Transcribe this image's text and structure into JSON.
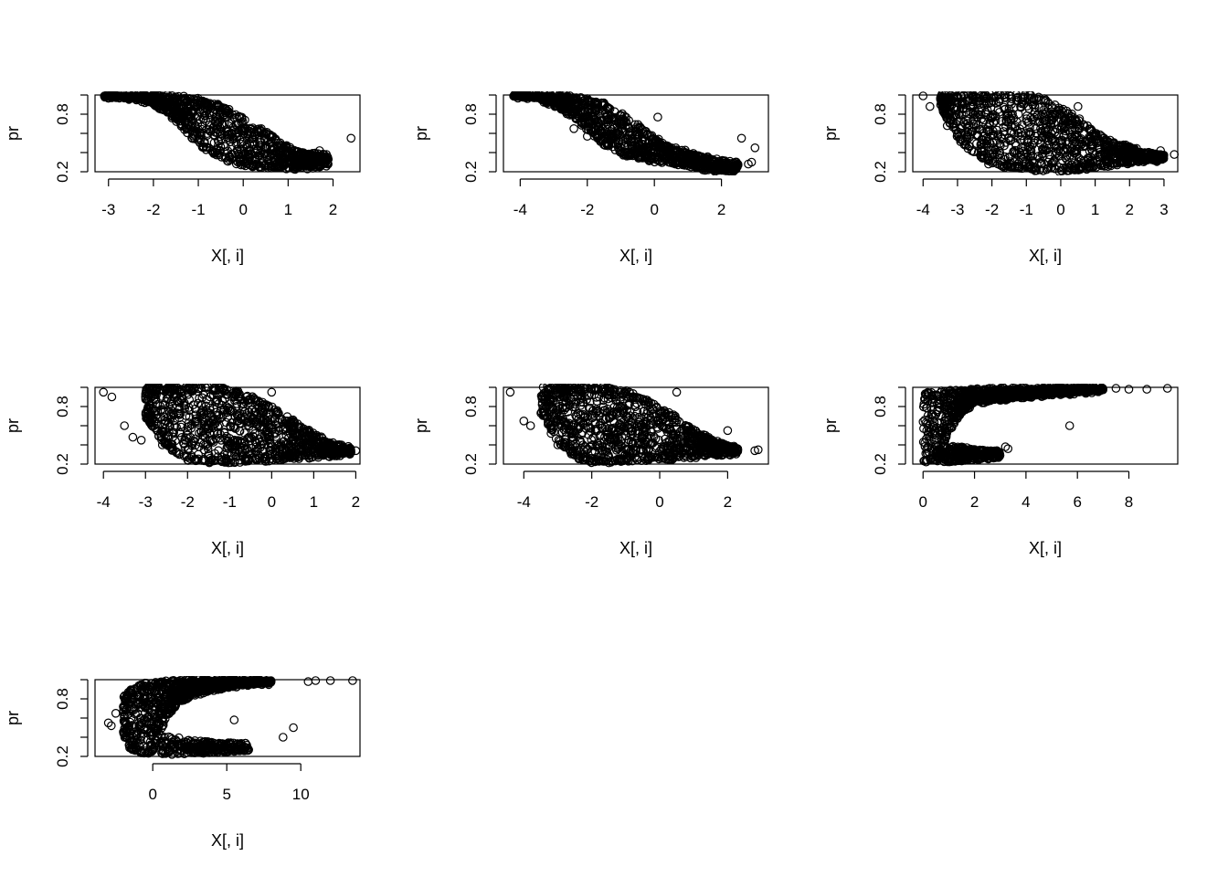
{
  "figure": {
    "layout": "3x3 grid of base-R scatter panels (7 used)",
    "marker": "open-circle",
    "colors": {
      "points": "#000000",
      "background": "#ffffff",
      "axes": "#000000"
    }
  },
  "chart_data": [
    {
      "type": "scatter",
      "xlabel": "X[, i]",
      "ylabel": "pr",
      "xlim": [
        -3.3,
        2.6
      ],
      "ylim": [
        0.2,
        1.0
      ],
      "xticks": [
        -3,
        -2,
        -1,
        0,
        1,
        2
      ],
      "yticks": [
        0.2,
        0.8
      ],
      "shape": "decreasing-sigmoid",
      "band": [
        [
          -3.1,
          0.99,
          0.99
        ],
        [
          -2.5,
          0.97,
          0.99
        ],
        [
          -2.0,
          0.92,
          0.99
        ],
        [
          -1.5,
          0.75,
          0.98
        ],
        [
          -1.0,
          0.5,
          0.95
        ],
        [
          -0.5,
          0.35,
          0.88
        ],
        [
          0.0,
          0.28,
          0.75
        ],
        [
          0.5,
          0.25,
          0.6
        ],
        [
          1.0,
          0.24,
          0.45
        ],
        [
          1.5,
          0.25,
          0.38
        ],
        [
          1.9,
          0.28,
          0.36
        ]
      ],
      "outliers": [
        [
          2.4,
          0.55
        ],
        [
          1.7,
          0.42
        ],
        [
          1.8,
          0.38
        ],
        [
          0.4,
          0.65
        ],
        [
          1.5,
          0.3
        ]
      ]
    },
    {
      "type": "scatter",
      "xlabel": "X[, i]",
      "ylabel": "pr",
      "xlim": [
        -4.5,
        3.4
      ],
      "ylim": [
        0.2,
        1.0
      ],
      "xticks": [
        -4,
        -2,
        0,
        2
      ],
      "yticks": [
        0.2,
        0.8
      ],
      "shape": "decreasing-sigmoid",
      "band": [
        [
          -4.2,
          0.99,
          0.99
        ],
        [
          -3.5,
          0.97,
          0.99
        ],
        [
          -3.0,
          0.9,
          0.99
        ],
        [
          -2.5,
          0.8,
          0.98
        ],
        [
          -2.0,
          0.65,
          0.95
        ],
        [
          -1.5,
          0.5,
          0.9
        ],
        [
          -1.0,
          0.4,
          0.8
        ],
        [
          -0.5,
          0.35,
          0.68
        ],
        [
          0.0,
          0.32,
          0.55
        ],
        [
          0.5,
          0.3,
          0.45
        ],
        [
          1.0,
          0.28,
          0.4
        ],
        [
          1.5,
          0.22,
          0.35
        ],
        [
          2.0,
          0.21,
          0.3
        ],
        [
          2.5,
          0.22,
          0.28
        ]
      ],
      "outliers": [
        [
          3.0,
          0.45
        ],
        [
          2.6,
          0.55
        ],
        [
          2.9,
          0.3
        ],
        [
          2.8,
          0.28
        ],
        [
          -2.0,
          0.57
        ],
        [
          -2.4,
          0.65
        ],
        [
          0.1,
          0.77
        ]
      ]
    },
    {
      "type": "scatter",
      "xlabel": "X[, i]",
      "ylabel": "pr",
      "xlim": [
        -4.3,
        3.4
      ],
      "ylim": [
        0.2,
        1.0
      ],
      "xticks": [
        -4,
        -3,
        -2,
        -1,
        0,
        1,
        2,
        3
      ],
      "yticks": [
        0.2,
        0.8
      ],
      "shape": "broad-decreasing-cloud",
      "band": [
        [
          -3.5,
          0.9,
          0.99
        ],
        [
          -3.0,
          0.55,
          0.99
        ],
        [
          -2.5,
          0.4,
          0.99
        ],
        [
          -2.0,
          0.3,
          0.99
        ],
        [
          -1.5,
          0.25,
          0.99
        ],
        [
          -1.0,
          0.24,
          0.99
        ],
        [
          -0.5,
          0.22,
          0.95
        ],
        [
          0.0,
          0.22,
          0.85
        ],
        [
          0.5,
          0.23,
          0.75
        ],
        [
          1.0,
          0.25,
          0.6
        ],
        [
          1.5,
          0.28,
          0.5
        ],
        [
          2.0,
          0.3,
          0.45
        ],
        [
          2.5,
          0.32,
          0.4
        ],
        [
          3.0,
          0.33,
          0.38
        ]
      ],
      "outliers": [
        [
          -4.0,
          0.99
        ],
        [
          -3.8,
          0.88
        ],
        [
          -3.3,
          0.68
        ],
        [
          -3.0,
          0.6
        ],
        [
          -2.4,
          0.4
        ],
        [
          -2.1,
          0.28
        ],
        [
          3.3,
          0.38
        ],
        [
          2.9,
          0.42
        ],
        [
          0.5,
          0.88
        ]
      ]
    },
    {
      "type": "scatter",
      "xlabel": "X[, i]",
      "ylabel": "pr",
      "xlim": [
        -4.2,
        2.1
      ],
      "ylim": [
        0.2,
        1.0
      ],
      "xticks": [
        -4,
        -3,
        -2,
        -1,
        0,
        1,
        2
      ],
      "yticks": [
        0.2,
        0.8
      ],
      "shape": "broad-decreasing-cloud",
      "band": [
        [
          -3.0,
          0.7,
          0.99
        ],
        [
          -2.5,
          0.4,
          0.99
        ],
        [
          -2.0,
          0.25,
          0.99
        ],
        [
          -1.5,
          0.23,
          0.99
        ],
        [
          -1.0,
          0.23,
          0.97
        ],
        [
          -0.5,
          0.24,
          0.9
        ],
        [
          0.0,
          0.25,
          0.78
        ],
        [
          0.5,
          0.27,
          0.65
        ],
        [
          1.0,
          0.28,
          0.5
        ],
        [
          1.5,
          0.3,
          0.4
        ],
        [
          1.9,
          0.32,
          0.36
        ]
      ],
      "outliers": [
        [
          -4.0,
          0.95
        ],
        [
          -3.8,
          0.9
        ],
        [
          -3.5,
          0.6
        ],
        [
          -3.3,
          0.48
        ],
        [
          -3.1,
          0.45
        ],
        [
          -2.6,
          0.4
        ],
        [
          1.8,
          0.33
        ],
        [
          2.0,
          0.34
        ],
        [
          1.6,
          0.4
        ],
        [
          0.0,
          0.95
        ]
      ]
    },
    {
      "type": "scatter",
      "xlabel": "X[, i]",
      "ylabel": "pr",
      "xlim": [
        -4.6,
        3.2
      ],
      "ylim": [
        0.2,
        1.0
      ],
      "xticks": [
        -4,
        -2,
        0,
        2
      ],
      "yticks": [
        0.2,
        0.8
      ],
      "shape": "broad-decreasing-cloud",
      "band": [
        [
          -3.5,
          0.75,
          0.99
        ],
        [
          -3.0,
          0.45,
          0.99
        ],
        [
          -2.5,
          0.28,
          0.99
        ],
        [
          -2.0,
          0.23,
          0.99
        ],
        [
          -1.5,
          0.23,
          0.98
        ],
        [
          -1.0,
          0.24,
          0.95
        ],
        [
          -0.5,
          0.25,
          0.88
        ],
        [
          0.0,
          0.26,
          0.78
        ],
        [
          0.5,
          0.27,
          0.68
        ],
        [
          1.0,
          0.28,
          0.55
        ],
        [
          1.5,
          0.3,
          0.45
        ],
        [
          2.0,
          0.31,
          0.4
        ],
        [
          2.3,
          0.32,
          0.36
        ]
      ],
      "outliers": [
        [
          -4.4,
          0.95
        ],
        [
          -4.0,
          0.65
        ],
        [
          -3.8,
          0.6
        ],
        [
          -3.2,
          0.52
        ],
        [
          -3.0,
          0.4
        ],
        [
          2.8,
          0.34
        ],
        [
          2.9,
          0.35
        ],
        [
          2.0,
          0.55
        ],
        [
          0.5,
          0.95
        ]
      ]
    },
    {
      "type": "scatter",
      "xlabel": "X[, i]",
      "ylabel": "pr",
      "xlim": [
        -0.4,
        9.9
      ],
      "ylim": [
        0.2,
        1.0
      ],
      "xticks": [
        0,
        2,
        4,
        6,
        8
      ],
      "yticks": [
        0.2,
        0.8
      ],
      "shape": "increasing-fan",
      "band": [
        [
          0.0,
          0.22,
          0.92
        ],
        [
          0.5,
          0.25,
          0.94
        ],
        [
          1.0,
          0.55,
          0.95
        ],
        [
          1.5,
          0.75,
          0.96
        ],
        [
          2.0,
          0.84,
          0.97
        ],
        [
          3.0,
          0.88,
          0.98
        ],
        [
          4.0,
          0.91,
          0.98
        ],
        [
          5.0,
          0.93,
          0.99
        ],
        [
          6.0,
          0.95,
          0.99
        ],
        [
          7.0,
          0.97,
          0.99
        ]
      ],
      "lower_branch": [
        [
          0.5,
          0.22,
          0.4
        ],
        [
          1.0,
          0.22,
          0.4
        ],
        [
          1.5,
          0.23,
          0.38
        ],
        [
          2.0,
          0.24,
          0.36
        ],
        [
          2.5,
          0.25,
          0.34
        ],
        [
          3.0,
          0.27,
          0.34
        ]
      ],
      "outliers": [
        [
          9.5,
          0.99
        ],
        [
          8.7,
          0.98
        ],
        [
          8.0,
          0.98
        ],
        [
          7.5,
          0.99
        ],
        [
          5.7,
          0.6
        ],
        [
          3.2,
          0.38
        ],
        [
          3.3,
          0.36
        ],
        [
          2.5,
          0.28
        ]
      ]
    },
    {
      "type": "scatter",
      "xlabel": "X[, i]",
      "ylabel": "pr",
      "xlim": [
        -3.9,
        14.0
      ],
      "ylim": [
        0.2,
        1.0
      ],
      "xticks": [
        0,
        5,
        10
      ],
      "yticks": [
        0.2,
        0.8
      ],
      "shape": "increasing-fan",
      "band": [
        [
          -2.0,
          0.45,
          0.8
        ],
        [
          -1.5,
          0.28,
          0.88
        ],
        [
          -1.0,
          0.25,
          0.93
        ],
        [
          -0.5,
          0.24,
          0.95
        ],
        [
          0.0,
          0.26,
          0.96
        ],
        [
          0.5,
          0.45,
          0.97
        ],
        [
          1.0,
          0.65,
          0.97
        ],
        [
          2.0,
          0.8,
          0.98
        ],
        [
          3.0,
          0.86,
          0.98
        ],
        [
          4.0,
          0.9,
          0.99
        ],
        [
          5.0,
          0.93,
          0.99
        ],
        [
          6.0,
          0.95,
          0.99
        ],
        [
          7.0,
          0.96,
          0.99
        ],
        [
          8.0,
          0.97,
          0.99
        ]
      ],
      "lower_branch": [
        [
          0.5,
          0.22,
          0.42
        ],
        [
          1.5,
          0.22,
          0.4
        ],
        [
          2.5,
          0.23,
          0.38
        ],
        [
          3.5,
          0.23,
          0.36
        ],
        [
          4.5,
          0.24,
          0.35
        ],
        [
          5.5,
          0.25,
          0.34
        ],
        [
          6.5,
          0.26,
          0.34
        ]
      ],
      "outliers": [
        [
          -3.0,
          0.55
        ],
        [
          -2.8,
          0.52
        ],
        [
          -2.5,
          0.65
        ],
        [
          13.5,
          0.99
        ],
        [
          12.0,
          0.99
        ],
        [
          11.0,
          0.99
        ],
        [
          10.5,
          0.98
        ],
        [
          9.5,
          0.5
        ],
        [
          8.8,
          0.4
        ],
        [
          5.5,
          0.58
        ]
      ]
    }
  ]
}
